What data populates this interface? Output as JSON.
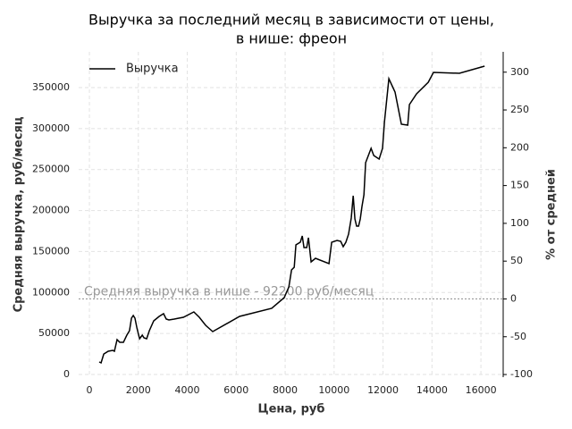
{
  "chart_data": {
    "type": "line",
    "title": [
      "Выручка за последний месяц в зависимости от цены,",
      "в нише: фреон"
    ],
    "xlabel": "Цена, руб",
    "ylabel": "Средняя выручка, руб/месяц",
    "y2label": "% от средней",
    "x": [
      400,
      475,
      585,
      770,
      950,
      1020,
      1130,
      1240,
      1390,
      1530,
      1640,
      1720,
      1790,
      1860,
      1940,
      2050,
      2160,
      2230,
      2340,
      2450,
      2630,
      2850,
      3030,
      3140,
      3250,
      3470,
      3650,
      3840,
      4270,
      4490,
      4750,
      5040,
      6140,
      7450,
      7960,
      8150,
      8260,
      8370,
      8440,
      8620,
      8700,
      8770,
      8880,
      8950,
      9060,
      9240,
      9790,
      9900,
      10120,
      10270,
      10370,
      10480,
      10590,
      10700,
      10780,
      10850,
      10920,
      11000,
      11070,
      11140,
      11220,
      11290,
      11510,
      11620,
      11840,
      11980,
      12060,
      12240,
      12490,
      12750,
      13010,
      13080,
      13370,
      13850,
      14060,
      15120,
      16150
    ],
    "series": [
      {
        "name": "Выручка",
        "color": "#000000",
        "values": [
          15300,
          14200,
          25000,
          28300,
          29400,
          28300,
          42500,
          39300,
          39300,
          48000,
          53400,
          68700,
          72000,
          68700,
          56700,
          43600,
          48000,
          44700,
          43600,
          53400,
          65400,
          70900,
          74100,
          67600,
          66500,
          67600,
          68700,
          69800,
          76300,
          69800,
          60000,
          52300,
          70900,
          80700,
          93800,
          106800,
          127600,
          130800,
          158100,
          161400,
          169000,
          154800,
          154800,
          166800,
          137400,
          141700,
          135200,
          161400,
          163500,
          162500,
          155900,
          161400,
          171200,
          190800,
          218100,
          189700,
          181000,
          181000,
          189700,
          205000,
          219200,
          258400,
          275800,
          267100,
          262800,
          275800,
          308600,
          360900,
          344500,
          305300,
          304200,
          329300,
          342400,
          356500,
          368500,
          367400,
          376200
        ]
      }
    ],
    "hline": 92200,
    "hline_color": "#999999",
    "annotation": "Средняя выручка в нише - 92200 руб/месяц",
    "xlim": [
      -440,
      16910
    ],
    "xticks": [
      0,
      2000,
      4000,
      6000,
      8000,
      10000,
      12000,
      14000,
      16000
    ],
    "ylim": [
      -3270,
      393600
    ],
    "yticks": [
      0,
      50000,
      100000,
      150000,
      200000,
      250000,
      300000,
      350000
    ],
    "y2lim": [
      -103.5,
      326.9
    ],
    "y2ticks": [
      -100,
      -50,
      0,
      50,
      100,
      150,
      200,
      250,
      300
    ],
    "grid": true,
    "legend": "upper left"
  }
}
